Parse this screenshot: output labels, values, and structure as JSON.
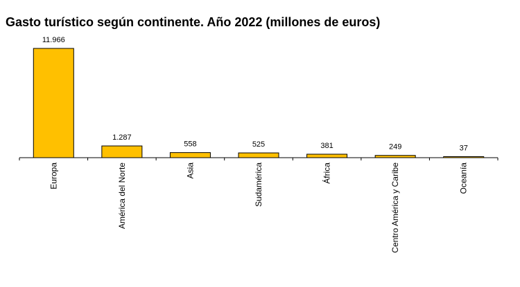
{
  "chart_data": {
    "type": "bar",
    "title": "Gasto turístico según continente. Año 2022 (millones de euros)",
    "xlabel": "",
    "ylabel": "",
    "categories": [
      "Europa",
      "América del Norte",
      "Asia",
      "Sudamérica",
      "África",
      "Centro América y Caribe",
      "Oceanía"
    ],
    "values": [
      11966,
      1287,
      558,
      525,
      381,
      249,
      37
    ],
    "value_labels": [
      "11.966",
      "1.287",
      "558",
      "525",
      "381",
      "249",
      "37"
    ],
    "ylim": [
      0,
      11966
    ],
    "grid": false,
    "legend": "none",
    "bar_color": "#FFC000",
    "bar_stroke": "#000000"
  }
}
